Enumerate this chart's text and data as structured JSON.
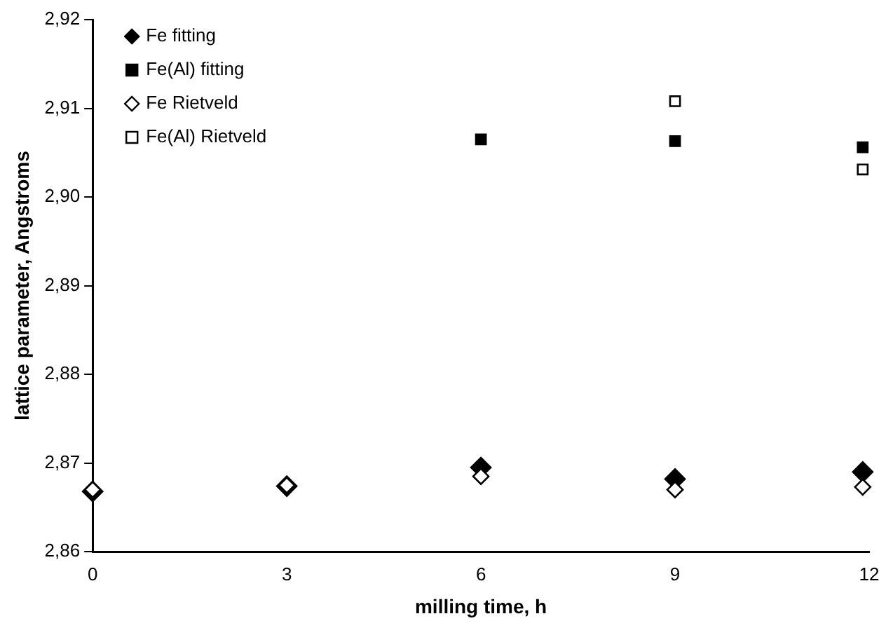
{
  "chart_data": {
    "type": "scatter",
    "xlabel": "milling time, h",
    "ylabel": "lattice parameter, Angstroms",
    "xlim": [
      0,
      12
    ],
    "xticks": [
      0,
      3,
      6,
      9,
      12
    ],
    "ylim": [
      2.86,
      2.92
    ],
    "yticks": [
      {
        "value": 2.86,
        "label": "2,86"
      },
      {
        "value": 2.87,
        "label": "2,87"
      },
      {
        "value": 2.88,
        "label": "2,88"
      },
      {
        "value": 2.89,
        "label": "2,89"
      },
      {
        "value": 2.9,
        "label": "2,90"
      },
      {
        "value": 2.91,
        "label": "2,91"
      },
      {
        "value": 2.92,
        "label": "2,92"
      }
    ],
    "grid": false,
    "legend": "top left",
    "series": [
      {
        "name": "Fe fitting",
        "color": "#000000",
        "marker": "diamond",
        "x": [
          0,
          3,
          6,
          9,
          11.9
        ],
        "values": [
          2.8668,
          2.8674,
          2.8695,
          2.8682,
          2.869
        ]
      },
      {
        "name": "Fe(Al) fitting",
        "color": "#000000",
        "marker": "square",
        "x": [
          6,
          9,
          11.9
        ],
        "values": [
          2.9065,
          2.9063,
          2.9056
        ]
      },
      {
        "name": "Fe Rietveld",
        "color": "#ffffff",
        "marker": "diamond",
        "x": [
          0,
          3,
          6,
          9,
          11.9
        ],
        "values": [
          2.867,
          2.8675,
          2.8685,
          2.867,
          2.8673
        ]
      },
      {
        "name": "Fe(Al) Rietveld",
        "color": "#ffffff",
        "marker": "square",
        "x": [
          9,
          11.9
        ],
        "values": [
          2.9108,
          2.9031
        ]
      }
    ]
  }
}
